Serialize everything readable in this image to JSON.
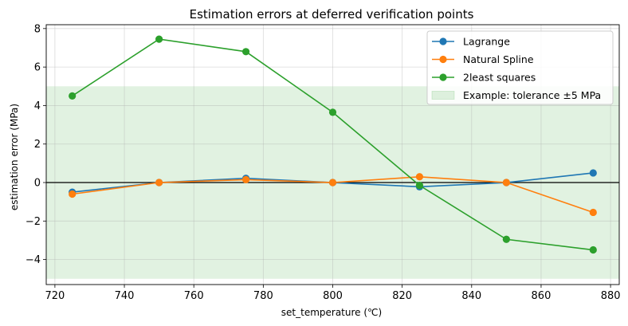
{
  "chart_data": {
    "type": "line",
    "title": "Estimation errors at deferred verification points",
    "xlabel": "set_temperature (℃)",
    "ylabel": "estimation error (MPa)",
    "x": [
      725,
      750,
      775,
      800,
      825,
      850,
      875
    ],
    "xlim": [
      717.5,
      882.5
    ],
    "ylim": [
      -5.3,
      8.2
    ],
    "xticks": [
      720,
      740,
      760,
      780,
      800,
      820,
      840,
      860,
      880
    ],
    "yticks": [
      -4,
      -2,
      0,
      2,
      4,
      6,
      8
    ],
    "ytick_labels": [
      "−4",
      "−2",
      "0",
      "2",
      "4",
      "6",
      "8"
    ],
    "grid": true,
    "legend_position": "top-right",
    "series": [
      {
        "name": "Lagrange",
        "color": "#1f77b4",
        "values": [
          -0.5,
          0.0,
          0.22,
          0.0,
          -0.22,
          0.0,
          0.5
        ]
      },
      {
        "name": "Natural Spline",
        "color": "#ff7f0e",
        "values": [
          -0.6,
          0.0,
          0.15,
          0.0,
          0.3,
          0.0,
          -1.55
        ]
      },
      {
        "name": "2least squares",
        "color": "#2ca02c",
        "values": [
          4.5,
          7.45,
          6.8,
          3.65,
          -0.15,
          -2.95,
          -3.5
        ]
      }
    ],
    "band": {
      "label": "Example: tolerance ±5 MPa",
      "low": -5,
      "high": 5,
      "color": "#2ca02c"
    },
    "zero_line": {
      "y": 0,
      "color": "#000000"
    }
  }
}
